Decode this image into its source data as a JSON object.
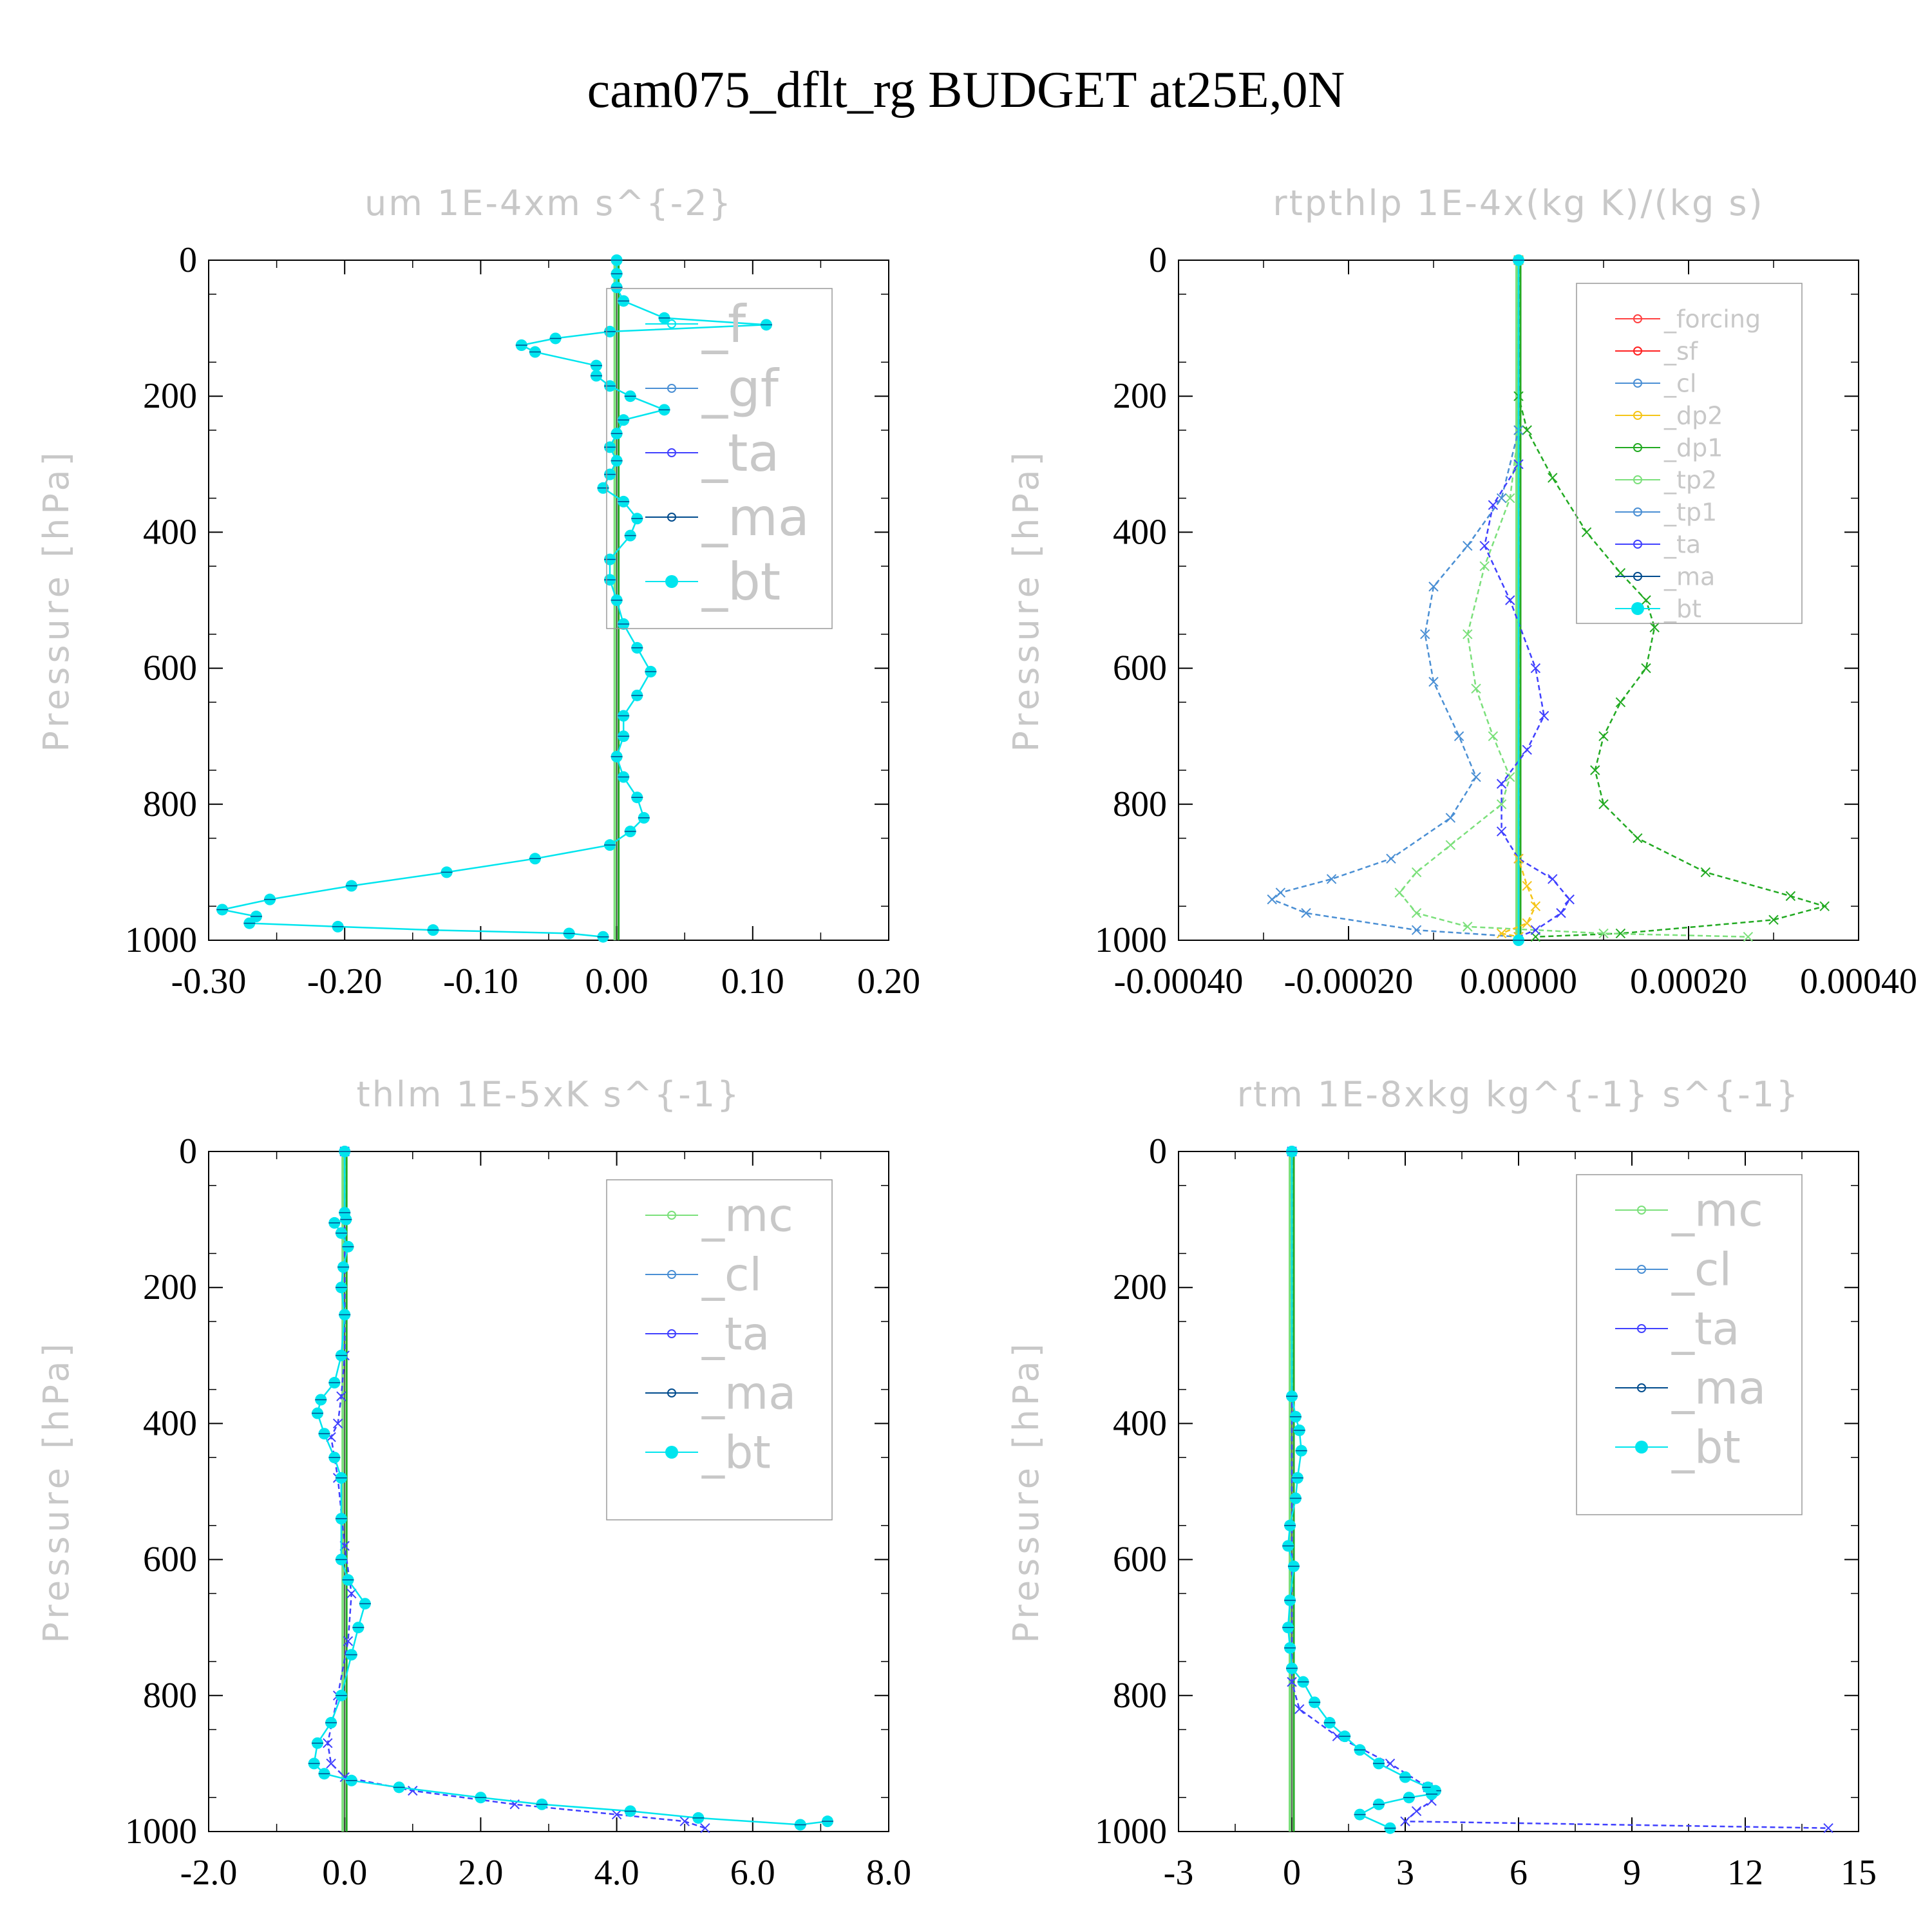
{
  "title": "cam075_dflt_rg  BUDGET at25E,0N",
  "chart_data": [
    {
      "type": "line",
      "title": "um  1E-4xm s^{-2}",
      "ylabel": "Pressure [hPa]",
      "xlim": [
        -0.3,
        0.2
      ],
      "ylim": [
        0,
        1000
      ],
      "xticks": [
        "-0.30",
        "-0.20",
        "-0.10",
        "0.00",
        "0.10",
        "0.20"
      ],
      "yticks": [
        "0",
        "200",
        "400",
        "600",
        "800",
        "1000"
      ],
      "legend": [
        "_f",
        "_gf",
        "_ta",
        "_ma",
        "_bt"
      ],
      "series": [
        {
          "name": "_bt",
          "color": "#00e5ee",
          "x": [
            0,
            0,
            0,
            0.005,
            0.035,
            0.11,
            -0.005,
            -0.045,
            -0.07,
            -0.06,
            -0.015,
            -0.015,
            -0.005,
            0.01,
            0.035,
            0.005,
            0,
            -0.005,
            0,
            -0.005,
            -0.01,
            0.005,
            0.015,
            0.01,
            -0.005,
            -0.005,
            0,
            0.005,
            0.015,
            0.025,
            0.015,
            0.005,
            0.005,
            0,
            0.005,
            0.015,
            0.02,
            0.01,
            -0.005,
            -0.06,
            -0.125,
            -0.195,
            -0.255,
            -0.29,
            -0.265,
            -0.27,
            -0.205,
            -0.135,
            -0.035,
            -0.01
          ],
          "y": [
            0,
            20,
            40,
            60,
            85,
            95,
            105,
            115,
            125,
            135,
            155,
            170,
            185,
            200,
            220,
            235,
            255,
            275,
            295,
            315,
            335,
            355,
            380,
            405,
            440,
            470,
            500,
            535,
            570,
            605,
            640,
            670,
            700,
            730,
            760,
            790,
            820,
            840,
            860,
            880,
            900,
            920,
            940,
            955,
            965,
            975,
            980,
            985,
            990,
            995
          ]
        }
      ]
    },
    {
      "type": "line",
      "title": "rtpthlp  1E-4x(kg K)/(kg s)",
      "ylabel": "Pressure [hPa]",
      "xlim": [
        -0.0004,
        0.0004
      ],
      "ylim": [
        0,
        1000
      ],
      "xticks": [
        "-0.00040",
        "-0.00020",
        "0.00000",
        "0.00020",
        "0.00040"
      ],
      "yticks": [
        "0",
        "200",
        "400",
        "600",
        "800",
        "1000"
      ],
      "legend": [
        "_forcing",
        "_sf",
        "_cl",
        "_dp2",
        "_dp1",
        "_tp2",
        "_tp1",
        "_ta",
        "_ma",
        "_bt"
      ],
      "series": [
        {
          "name": "_dp1",
          "color": "#22aa22",
          "x": [
            0,
            0,
            1e-05,
            4e-05,
            8e-05,
            0.00012,
            0.00015,
            0.00016,
            0.00015,
            0.00012,
            0.0001,
            9e-05,
            0.0001,
            0.00014,
            0.00022,
            0.00032,
            0.00036,
            0.0003,
            0.00012,
            2e-05
          ],
          "y": [
            0,
            200,
            250,
            320,
            400,
            460,
            500,
            540,
            600,
            650,
            700,
            750,
            800,
            850,
            900,
            935,
            950,
            970,
            990,
            995
          ]
        },
        {
          "name": "_tp2",
          "color": "#7be07b",
          "x": [
            0,
            0,
            -1e-05,
            -4e-05,
            -6e-05,
            -5e-05,
            -3e-05,
            -1e-05,
            -2e-05,
            -8e-05,
            -0.00012,
            -0.00014,
            -0.00012,
            -6e-05,
            0.0001,
            0.00027
          ],
          "y": [
            0,
            250,
            350,
            450,
            550,
            630,
            700,
            760,
            800,
            860,
            900,
            930,
            960,
            980,
            990,
            995
          ]
        },
        {
          "name": "_tp1",
          "color": "#4a8fd4",
          "x": [
            0,
            0,
            -2e-05,
            -6e-05,
            -0.0001,
            -0.00011,
            -0.0001,
            -7e-05,
            -5e-05,
            -8e-05,
            -0.00015,
            -0.00022,
            -0.00028,
            -0.00029,
            -0.00025,
            -0.00012,
            0
          ],
          "y": [
            0,
            250,
            350,
            420,
            480,
            550,
            620,
            700,
            760,
            820,
            880,
            910,
            930,
            940,
            960,
            985,
            995
          ]
        },
        {
          "name": "_ta",
          "color": "#4040ff",
          "x": [
            0,
            0,
            -3e-05,
            -4e-05,
            -1e-05,
            2e-05,
            3e-05,
            1e-05,
            -2e-05,
            -2e-05,
            0,
            4e-05,
            6e-05,
            5e-05,
            2e-05,
            0
          ],
          "y": [
            0,
            300,
            360,
            420,
            500,
            600,
            670,
            720,
            770,
            840,
            880,
            910,
            940,
            960,
            985,
            995
          ]
        },
        {
          "name": "_dp2",
          "color": "#f5c518",
          "x": [
            0,
            0,
            1e-05,
            2e-05,
            1e-05,
            -2e-05,
            0
          ],
          "y": [
            0,
            880,
            920,
            950,
            975,
            990,
            995
          ]
        },
        {
          "name": "_bt",
          "color": "#00e5ee",
          "x": [
            0,
            0
          ],
          "y": [
            0,
            1000
          ]
        }
      ]
    },
    {
      "type": "line",
      "title": "thlm  1E-5xK s^{-1}",
      "ylabel": "Pressure [hPa]",
      "xlim": [
        -2.0,
        8.0
      ],
      "ylim": [
        0,
        1000
      ],
      "xticks": [
        "-2.0",
        "0.0",
        "2.0",
        "4.0",
        "6.0",
        "8.0"
      ],
      "yticks": [
        "0",
        "200",
        "400",
        "600",
        "800",
        "1000"
      ],
      "legend": [
        "_mc",
        "_cl",
        "_ta",
        "_ma",
        "_bt"
      ],
      "series": [
        {
          "name": "_ta",
          "color": "#4040ff",
          "x": [
            0,
            0,
            -0.05,
            -0.1,
            -0.2,
            -0.1,
            0,
            0.1,
            0.05,
            -0.1,
            -0.25,
            -0.2,
            0,
            1.0,
            2.5,
            4.0,
            5.0,
            5.3
          ],
          "y": [
            0,
            300,
            360,
            400,
            420,
            480,
            580,
            650,
            720,
            800,
            870,
            900,
            920,
            940,
            960,
            975,
            985,
            995
          ]
        },
        {
          "name": "_bt",
          "color": "#00e5ee",
          "x": [
            0,
            0,
            0.02,
            -0.15,
            -0.05,
            0.05,
            -0.02,
            -0.05,
            0,
            -0.05,
            -0.15,
            -0.35,
            -0.4,
            -0.3,
            -0.15,
            -0.05,
            -0.05,
            -0.05,
            0.05,
            0.3,
            0.2,
            0.1,
            -0.05,
            -0.2,
            -0.4,
            -0.45,
            -0.3,
            0.1,
            0.8,
            2.0,
            2.9,
            4.2,
            5.2,
            6.7,
            7.1
          ],
          "y": [
            0,
            90,
            100,
            105,
            120,
            140,
            170,
            200,
            240,
            300,
            340,
            365,
            385,
            415,
            450,
            480,
            540,
            600,
            630,
            665,
            700,
            740,
            800,
            840,
            870,
            900,
            915,
            925,
            935,
            950,
            960,
            970,
            980,
            990,
            985
          ]
        }
      ]
    },
    {
      "type": "line",
      "title": "rtm  1E-8xkg kg^{-1} s^{-1}",
      "ylabel": "Pressure [hPa]",
      "xlim": [
        -3,
        15
      ],
      "ylim": [
        0,
        1000
      ],
      "xticks": [
        "-3",
        "0",
        "3",
        "6",
        "9",
        "12",
        "15"
      ],
      "yticks": [
        "0",
        "200",
        "400",
        "600",
        "800",
        "1000"
      ],
      "legend": [
        "_mc",
        "_cl",
        "_ta",
        "_ma",
        "_bt"
      ],
      "series": [
        {
          "name": "_ta",
          "color": "#4040ff",
          "x": [
            0,
            0,
            0.2,
            1.2,
            2.6,
            3.6,
            3.7,
            3.3,
            3.0,
            14.2
          ],
          "y": [
            0,
            780,
            820,
            860,
            900,
            935,
            955,
            970,
            985,
            995
          ]
        },
        {
          "name": "_bt",
          "color": "#00e5ee",
          "x": [
            0,
            0,
            0.1,
            0.2,
            0.25,
            0.15,
            0.1,
            -0.05,
            -0.1,
            0.05,
            -0.05,
            -0.1,
            -0.05,
            0,
            0.3,
            0.6,
            1.0,
            1.4,
            1.8,
            2.3,
            3.0,
            3.6,
            3.8,
            3.7,
            3.1,
            2.3,
            1.8,
            2.6
          ],
          "y": [
            0,
            360,
            390,
            410,
            440,
            480,
            510,
            550,
            580,
            610,
            660,
            700,
            730,
            760,
            780,
            810,
            840,
            860,
            880,
            900,
            920,
            935,
            940,
            945,
            950,
            960,
            975,
            995
          ]
        }
      ]
    }
  ]
}
